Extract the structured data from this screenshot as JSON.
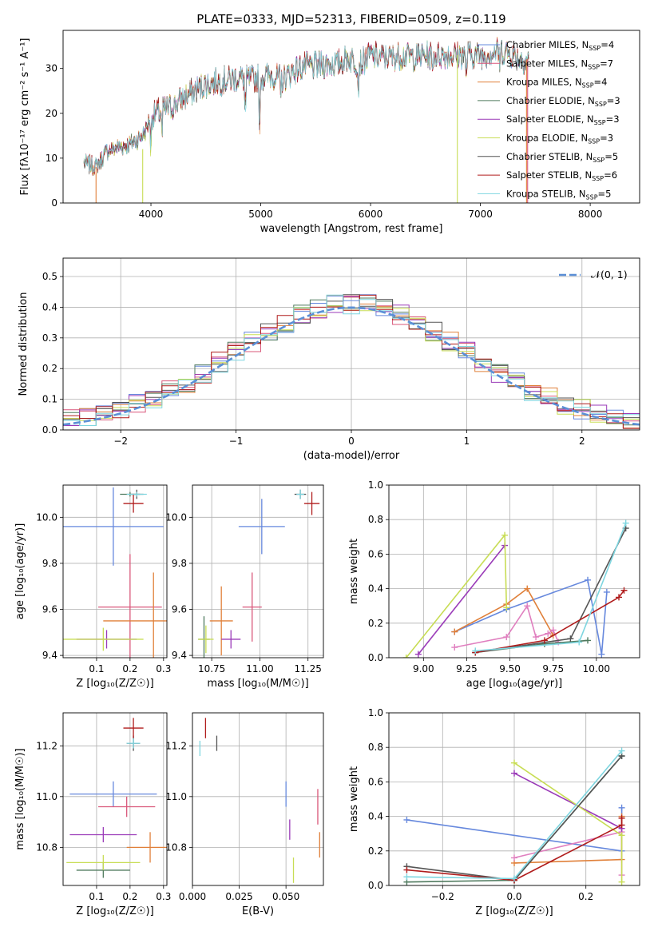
{
  "figure_title": "PLATE=0333, MJD=52313, FIBERID=0509, z=0.119",
  "colors": {
    "blue": "#6688dd",
    "red": "#d9577a",
    "orange": "#e0803a",
    "green": "#4f7a5e",
    "purple": "#9a3ab8",
    "yellow": "#c8dd55",
    "gray": "#555555",
    "darkred": "#b01c1c",
    "cyan": "#7fd6e0",
    "pink": "#e07fbf",
    "dashblue": "#5b8fd6"
  },
  "chart_data": [
    {
      "type": "line",
      "title": "PLATE=0333, MJD=52313, FIBERID=0509, z=0.119",
      "xlabel": "wavelength [Angstrom, rest frame]",
      "ylabel": "Flux [fλ10⁻¹⁷ erg cm⁻² s⁻¹ A⁻¹]",
      "xlim": [
        3200,
        8450
      ],
      "ylim": [
        0,
        38.5
      ],
      "xticks": [
        4000,
        5000,
        6000,
        7000,
        8000
      ],
      "yticks": [
        0,
        10,
        20,
        30
      ],
      "legend_position": "upper right",
      "continuum": {
        "x": [
          3390,
          3500,
          3600,
          3700,
          3800,
          3900,
          3950,
          4000,
          4100,
          4200,
          4300,
          4400,
          4500,
          4600,
          4700,
          4800,
          4900,
          5000,
          5100,
          5200,
          5300,
          5400,
          5500,
          5600,
          5700,
          5800,
          5900,
          6000,
          6100,
          6200,
          6300,
          6400,
          6500,
          6600,
          6700,
          6800,
          6900,
          7000,
          7100,
          7200,
          7300,
          7400,
          7450
        ],
        "y": [
          9,
          8,
          11.5,
          12.5,
          13,
          14.5,
          16,
          19.5,
          20.5,
          21.5,
          23.5,
          25,
          26.5,
          27,
          27.5,
          28,
          27.5,
          28,
          28.5,
          27.5,
          29.5,
          30.5,
          30.5,
          31,
          31,
          32.5,
          31,
          33,
          32.5,
          32.5,
          33,
          32.5,
          33,
          33,
          33,
          33,
          33,
          33,
          33.5,
          34,
          33,
          32,
          32
        ]
      },
      "series": [
        {
          "name": "Chabrier MILES, N_SSP=4",
          "color": "#6688dd"
        },
        {
          "name": "Salpeter MILES, N_SSP=7",
          "color": "#d9577a"
        },
        {
          "name": "Kroupa MILES, N_SSP=4",
          "color": "#e0803a"
        },
        {
          "name": "Chabrier ELODIE, N_SSP=3",
          "color": "#4f7a5e"
        },
        {
          "name": "Salpeter ELODIE, N_SSP=3",
          "color": "#9a3ab8"
        },
        {
          "name": "Kroupa ELODIE, N_SSP=3",
          "color": "#c8dd55"
        },
        {
          "name": "Chabrier STELIB, N_SSP=5",
          "color": "#555555"
        },
        {
          "name": "Salpeter STELIB, N_SSP=6",
          "color": "#b01c1c"
        },
        {
          "name": "Kroupa STELIB, N_SSP=5",
          "color": "#7fd6e0"
        }
      ]
    },
    {
      "type": "histogram",
      "xlabel": "(data-model)/error",
      "ylabel": "Normed distribution",
      "xlim": [
        -2.5,
        2.5
      ],
      "ylim": [
        0,
        0.56
      ],
      "xticks": [
        -2,
        -1,
        0,
        1,
        2
      ],
      "yticks": [
        0.0,
        0.1,
        0.2,
        0.3,
        0.4,
        0.5
      ],
      "grid": true,
      "reference_curve": {
        "label": "N(0,1)",
        "type": "gaussian",
        "mean": 0,
        "sigma": 1
      },
      "legend_position": "upper right"
    },
    {
      "type": "errorbar",
      "xlabel": "Z [log₁₀(Z/Z☉)]",
      "ylabel": "age  [log₁₀(age/yr)]",
      "xlim": [
        0.0,
        0.31
      ],
      "ylim": [
        9.39,
        10.14
      ],
      "xticks": [
        0.1,
        0.2,
        0.3
      ],
      "yticks": [
        9.4,
        9.6,
        9.8,
        10.0
      ],
      "grid": true,
      "points": [
        {
          "color": "#6688dd",
          "x": 0.15,
          "y": 9.96,
          "xerr": 0.15,
          "yerr": 0.17
        },
        {
          "color": "#d9577a",
          "x": 0.2,
          "y": 9.61,
          "xerr": 0.095,
          "yerr": 0.23
        },
        {
          "color": "#e0803a",
          "x": 0.27,
          "y": 9.55,
          "xerr": 0.15,
          "yerr": 0.21
        },
        {
          "color": "#4f7a5e",
          "x": 0.2,
          "y": 10.1,
          "xerr": 0.03,
          "yerr": 0.01
        },
        {
          "color": "#9a3ab8",
          "x": 0.13,
          "y": 9.47,
          "xerr": 0.09,
          "yerr": 0.04
        },
        {
          "color": "#c8dd55",
          "x": 0.12,
          "y": 9.47,
          "xerr": 0.12,
          "yerr": 0.05
        },
        {
          "color": "#555555",
          "x": 0.22,
          "y": 10.1,
          "xerr": 0.02,
          "yerr": 0.02
        },
        {
          "color": "#b01c1c",
          "x": 0.21,
          "y": 10.06,
          "xerr": 0.03,
          "yerr": 0.04
        },
        {
          "color": "#7fd6e0",
          "x": 0.22,
          "y": 10.1,
          "xerr": 0.03,
          "yerr": 0.01
        }
      ]
    },
    {
      "type": "errorbar",
      "xlabel": "mass [log₁₀(M/M☉)]",
      "ylabel": "",
      "xlim": [
        10.65,
        11.33
      ],
      "ylim": [
        9.39,
        10.14
      ],
      "xticks": [
        10.75,
        11.0,
        11.25
      ],
      "xticklabels": [
        "10.75",
        "11.00",
        "11.25"
      ],
      "yticks": [
        9.4,
        9.6,
        9.8,
        10.0
      ],
      "grid": true,
      "points": [
        {
          "color": "#6688dd",
          "x": 11.01,
          "y": 9.96,
          "xerr": 0.12,
          "yerr": 0.12
        },
        {
          "color": "#d9577a",
          "x": 10.96,
          "y": 9.61,
          "xerr": 0.05,
          "yerr": 0.15
        },
        {
          "color": "#e0803a",
          "x": 10.8,
          "y": 9.55,
          "xerr": 0.06,
          "yerr": 0.15
        },
        {
          "color": "#4f7a5e",
          "x": 10.71,
          "y": 9.47,
          "xerr": 0.03,
          "yerr": 0.1
        },
        {
          "color": "#9a3ab8",
          "x": 10.85,
          "y": 9.47,
          "xerr": 0.05,
          "yerr": 0.04
        },
        {
          "color": "#c8dd55",
          "x": 10.72,
          "y": 9.47,
          "xerr": 0.04,
          "yerr": 0.06
        },
        {
          "color": "#555555",
          "x": 11.21,
          "y": 10.1,
          "xerr": 0.03,
          "yerr": 0.02
        },
        {
          "color": "#b01c1c",
          "x": 11.27,
          "y": 10.06,
          "xerr": 0.04,
          "yerr": 0.05
        },
        {
          "color": "#7fd6e0",
          "x": 11.21,
          "y": 10.1,
          "xerr": 0.02,
          "yerr": 0.02
        }
      ]
    },
    {
      "type": "line",
      "xlabel": "age  [log₁₀(age/yr)]",
      "ylabel": "mass weight",
      "xlim": [
        8.8,
        10.25
      ],
      "ylim": [
        0,
        1.0
      ],
      "xticks": [
        9.0,
        9.25,
        9.5,
        9.75,
        10.0
      ],
      "xticklabels": [
        "9.00",
        "9.25",
        "9.50",
        "9.75",
        "10.00"
      ],
      "yticks": [
        0.0,
        0.2,
        0.4,
        0.6,
        0.8,
        1.0
      ],
      "grid": true,
      "series": [
        {
          "color": "#6688dd",
          "x": [
            9.18,
            9.48,
            9.95,
            10.03,
            10.06
          ],
          "y": [
            0.15,
            0.28,
            0.45,
            0.02,
            0.38
          ]
        },
        {
          "color": "#e0803a",
          "x": [
            9.18,
            9.48,
            9.6,
            9.75
          ],
          "y": [
            0.15,
            0.31,
            0.4,
            0.13
          ]
        },
        {
          "color": "#e07fbf",
          "x": [
            9.18,
            9.48,
            9.6,
            9.65,
            9.72,
            9.75,
            9.78
          ],
          "y": [
            0.06,
            0.12,
            0.3,
            0.12,
            0.14,
            0.16,
            0.09
          ]
        },
        {
          "color": "#4f7a5e",
          "x": [
            9.3,
            9.7,
            9.95
          ],
          "y": [
            0.03,
            0.08,
            0.1
          ]
        },
        {
          "color": "#9a3ab8",
          "x": [
            8.97,
            9.47
          ],
          "y": [
            0.02,
            0.65
          ]
        },
        {
          "color": "#c8dd55",
          "x": [
            8.9,
            9.47,
            9.48
          ],
          "y": [
            0.0,
            0.71,
            0.29
          ]
        },
        {
          "color": "#555555",
          "x": [
            9.3,
            9.85,
            10.17
          ],
          "y": [
            0.03,
            0.11,
            0.75
          ]
        },
        {
          "color": "#b01c1c",
          "x": [
            9.3,
            9.7,
            10.13,
            10.16
          ],
          "y": [
            0.03,
            0.1,
            0.35,
            0.39
          ]
        },
        {
          "color": "#7fd6e0",
          "x": [
            9.3,
            9.9,
            10.17
          ],
          "y": [
            0.04,
            0.09,
            0.78
          ]
        }
      ]
    },
    {
      "type": "errorbar",
      "xlabel": "Z [log₁₀(Z/Z☉)]",
      "ylabel": "mass [log₁₀(M/M☉)]",
      "xlim": [
        0.0,
        0.31
      ],
      "ylim": [
        10.65,
        11.33
      ],
      "xticks": [
        0.1,
        0.2,
        0.3
      ],
      "yticks": [
        10.8,
        11.0,
        11.2
      ],
      "grid": true,
      "points": [
        {
          "color": "#6688dd",
          "x": 0.15,
          "y": 11.01,
          "xerr": 0.13,
          "yerr": 0.05
        },
        {
          "color": "#d9577a",
          "x": 0.19,
          "y": 10.96,
          "xerr": 0.085,
          "yerr": 0.04
        },
        {
          "color": "#e0803a",
          "x": 0.26,
          "y": 10.8,
          "xerr": 0.07,
          "yerr": 0.06
        },
        {
          "color": "#4f7a5e",
          "x": 0.12,
          "y": 10.71,
          "xerr": 0.08,
          "yerr": 0.03
        },
        {
          "color": "#9a3ab8",
          "x": 0.12,
          "y": 10.85,
          "xerr": 0.1,
          "yerr": 0.03
        },
        {
          "color": "#c8dd55",
          "x": 0.12,
          "y": 10.74,
          "xerr": 0.11,
          "yerr": 0.03
        },
        {
          "color": "#555555",
          "x": 0.21,
          "y": 11.21,
          "xerr": 0.02,
          "yerr": 0.03
        },
        {
          "color": "#b01c1c",
          "x": 0.21,
          "y": 11.27,
          "xerr": 0.03,
          "yerr": 0.04
        },
        {
          "color": "#7fd6e0",
          "x": 0.21,
          "y": 11.21,
          "xerr": 0.02,
          "yerr": 0.02
        }
      ]
    },
    {
      "type": "errorbar",
      "xlabel": "E(B-V)",
      "ylabel": "",
      "xlim": [
        0.0,
        0.07
      ],
      "ylim": [
        10.65,
        11.33
      ],
      "xticks": [
        0.0,
        0.025,
        0.05
      ],
      "xticklabels": [
        "0.000",
        "0.025",
        "0.050"
      ],
      "yticks": [
        10.8,
        11.0,
        11.2
      ],
      "grid": true,
      "points": [
        {
          "color": "#6688dd",
          "x": 0.05,
          "y": 11.01,
          "xerr": 0.0,
          "yerr": 0.05
        },
        {
          "color": "#d9577a",
          "x": 0.067,
          "y": 10.96,
          "xerr": 0.0,
          "yerr": 0.07
        },
        {
          "color": "#e0803a",
          "x": 0.068,
          "y": 10.81,
          "xerr": 0.0,
          "yerr": 0.05
        },
        {
          "color": "#9a3ab8",
          "x": 0.052,
          "y": 10.87,
          "xerr": 0.0,
          "yerr": 0.04
        },
        {
          "color": "#c8dd55",
          "x": 0.054,
          "y": 10.71,
          "xerr": 0.0,
          "yerr": 0.05
        },
        {
          "color": "#555555",
          "x": 0.013,
          "y": 11.21,
          "xerr": 0.0,
          "yerr": 0.03
        },
        {
          "color": "#b01c1c",
          "x": 0.007,
          "y": 11.27,
          "xerr": 0.0,
          "yerr": 0.04
        },
        {
          "color": "#7fd6e0",
          "x": 0.004,
          "y": 11.19,
          "xerr": 0.0,
          "yerr": 0.03
        }
      ]
    },
    {
      "type": "line",
      "xlabel": "Z [log₁₀(Z/Z☉)]",
      "ylabel": "mass weight",
      "xlim": [
        -0.35,
        0.35
      ],
      "ylim": [
        0,
        1.0
      ],
      "xticks": [
        -0.2,
        0.0,
        0.2
      ],
      "xticklabels": [
        "−0.2",
        "0.0",
        "0.2"
      ],
      "yticks": [
        0.0,
        0.2,
        0.4,
        0.6,
        0.8,
        1.0
      ],
      "grid": true,
      "series": [
        {
          "color": "#6688dd",
          "x": [
            -0.3,
            0.3,
            0.3
          ],
          "y": [
            0.38,
            0.2,
            0.45
          ]
        },
        {
          "color": "#e0803a",
          "x": [
            0.0,
            0.3,
            0.3
          ],
          "y": [
            0.13,
            0.15,
            0.4
          ]
        },
        {
          "color": "#e07fbf",
          "x": [
            0.0,
            0.3,
            0.3
          ],
          "y": [
            0.16,
            0.31,
            0.06
          ]
        },
        {
          "color": "#4f7a5e",
          "x": [
            -0.3,
            0.0,
            0.3
          ],
          "y": [
            0.02,
            0.03,
            0.75
          ]
        },
        {
          "color": "#9a3ab8",
          "x": [
            0.0,
            0.3
          ],
          "y": [
            0.65,
            0.33
          ]
        },
        {
          "color": "#c8dd55",
          "x": [
            0.0,
            0.3,
            0.3
          ],
          "y": [
            0.71,
            0.29,
            0.02
          ]
        },
        {
          "color": "#555555",
          "x": [
            -0.3,
            0.0,
            0.3
          ],
          "y": [
            0.11,
            0.03,
            0.75
          ]
        },
        {
          "color": "#b01c1c",
          "x": [
            -0.3,
            0.0,
            0.3,
            0.3
          ],
          "y": [
            0.09,
            0.03,
            0.35,
            0.39
          ]
        },
        {
          "color": "#7fd6e0",
          "x": [
            -0.3,
            0.0,
            0.3
          ],
          "y": [
            0.05,
            0.04,
            0.78
          ]
        }
      ]
    }
  ]
}
